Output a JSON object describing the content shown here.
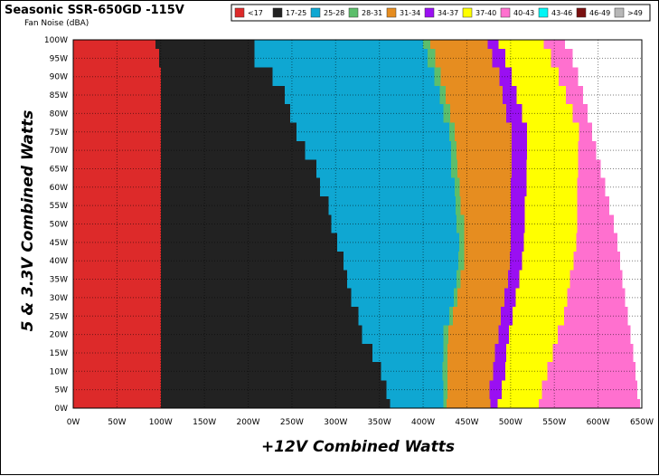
{
  "chart_data": {
    "type": "heatmap",
    "title": "Seasonic SSR-650GD -115V",
    "subtitle": "Fan Noise (dBA)",
    "xlabel": "+12V Combined Watts",
    "ylabel": "5 & 3.3V Combined Watts",
    "xlim": [
      0,
      650
    ],
    "ylim": [
      0,
      100
    ],
    "grid": true,
    "legend_position": "top-right",
    "x_ticks": [
      "0W",
      "50W",
      "100W",
      "150W",
      "200W",
      "250W",
      "300W",
      "350W",
      "400W",
      "450W",
      "500W",
      "550W",
      "600W",
      "650W"
    ],
    "y_ticks": [
      "0W",
      "5W",
      "10W",
      "15W",
      "20W",
      "25W",
      "30W",
      "35W",
      "40W",
      "45W",
      "50W",
      "55W",
      "60W",
      "65W",
      "70W",
      "75W",
      "80W",
      "85W",
      "90W",
      "95W",
      "100W"
    ],
    "legend": [
      {
        "label": "<17",
        "color": "#dd2a2a"
      },
      {
        "label": "17-25",
        "color": "#222222"
      },
      {
        "label": "25-28",
        "color": "#0fa7d2"
      },
      {
        "label": "28-31",
        "color": "#5cbe6b"
      },
      {
        "label": "31-34",
        "color": "#e68d20"
      },
      {
        "label": "34-37",
        "color": "#9a0ff2"
      },
      {
        "label": "37-40",
        "color": "#ffff00"
      },
      {
        "label": "40-43",
        "color": "#ff70cf"
      },
      {
        "label": "43-46",
        "color": "#00f6f6"
      },
      {
        "label": "46-49",
        "color": "#7a1010"
      },
      {
        "label": ">49",
        "color": "#b7b7b7"
      }
    ],
    "band_boundaries": {
      "y": [
        0,
        5,
        10,
        15,
        20,
        25,
        30,
        35,
        40,
        45,
        50,
        55,
        60,
        65,
        70,
        75,
        80,
        85,
        90,
        95,
        100
      ],
      "red_end": [
        100,
        100,
        100,
        100,
        100,
        100,
        100,
        100,
        100,
        100,
        100,
        100,
        100,
        100,
        100,
        100,
        100,
        100,
        100,
        98,
        94
      ],
      "black_end": [
        362,
        358,
        352,
        342,
        330,
        326,
        318,
        313,
        309,
        302,
        295,
        292,
        282,
        278,
        265,
        255,
        248,
        242,
        228,
        207,
        207
      ],
      "blue_end": [
        423,
        423,
        422,
        423,
        423,
        430,
        435,
        438,
        440,
        441,
        438,
        437,
        436,
        432,
        432,
        430,
        423,
        419,
        413,
        405,
        400
      ],
      "green_end": [
        427,
        428,
        428,
        428,
        429,
        434,
        439,
        443,
        447,
        447,
        447,
        443,
        442,
        439,
        438,
        436,
        431,
        426,
        420,
        414,
        408
      ],
      "orange_end": [
        477,
        476,
        480,
        482,
        486,
        489,
        493,
        497,
        499,
        500,
        500,
        500,
        500,
        501,
        501,
        501,
        495,
        491,
        487,
        479,
        474
      ],
      "purple_end": [
        485,
        490,
        494,
        495,
        498,
        502,
        506,
        510,
        513,
        515,
        516,
        516,
        518,
        518,
        519,
        519,
        513,
        507,
        501,
        494,
        486
      ],
      "yellow_end": [
        532,
        536,
        542,
        548,
        554,
        561,
        565,
        568,
        572,
        575,
        576,
        576,
        576,
        577,
        577,
        578,
        571,
        563,
        555,
        546,
        538
      ],
      "pink_end": [
        648,
        645,
        643,
        640,
        637,
        634,
        631,
        628,
        625,
        622,
        618,
        613,
        608,
        603,
        598,
        593,
        588,
        583,
        577,
        571,
        562
      ]
    }
  }
}
